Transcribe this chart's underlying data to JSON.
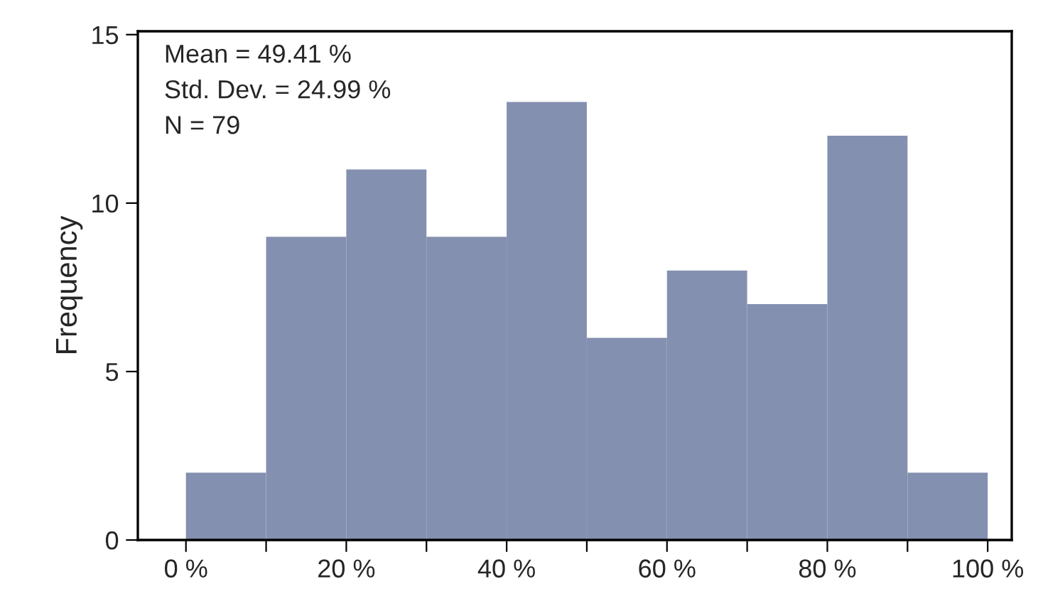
{
  "chart_data": {
    "type": "histogram",
    "ylabel": "Frequency",
    "bins": [
      0,
      10,
      20,
      30,
      40,
      50,
      60,
      70,
      80,
      90,
      100
    ],
    "values": [
      2,
      9,
      11,
      9,
      13,
      6,
      8,
      7,
      12,
      2
    ],
    "color": "#8490b0",
    "xlim": [
      -6,
      103
    ],
    "ylim": [
      0,
      15.1
    ],
    "xticks": [
      {
        "value": 0,
        "label": "0 %"
      },
      {
        "value": 10,
        "label": null
      },
      {
        "value": 20,
        "label": "20 %"
      },
      {
        "value": 30,
        "label": null
      },
      {
        "value": 40,
        "label": "40 %"
      },
      {
        "value": 50,
        "label": null
      },
      {
        "value": 60,
        "label": "60 %"
      },
      {
        "value": 70,
        "label": null
      },
      {
        "value": 80,
        "label": "80 %"
      },
      {
        "value": 90,
        "label": null
      },
      {
        "value": 100,
        "label": "100 %"
      }
    ],
    "yticks": [
      0,
      5,
      10,
      15
    ],
    "annotations": [
      "Mean = 49.41 %",
      "Std. Dev. = 24.99 %",
      "N = 79"
    ],
    "grid": false
  }
}
